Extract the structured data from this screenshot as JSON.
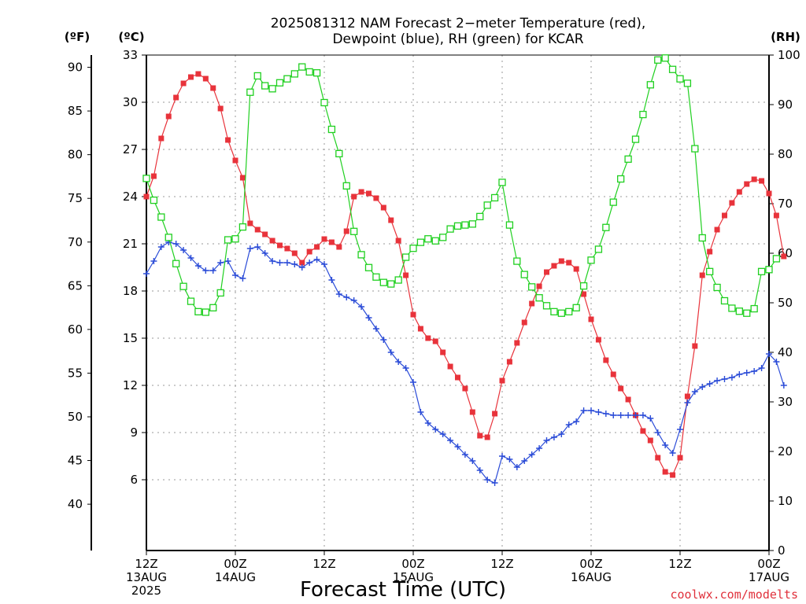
{
  "chart_data": {
    "type": "line",
    "title_line1": "2025081312 NAM Forecast 2−meter Temperature (red),",
    "title_line2": "Dewpoint (blue), RH (green) for KCAR",
    "unit_f": "(ºF)",
    "unit_c": "(ºC)",
    "unit_rh": "(RH)",
    "xlabel": "Forecast Time (UTC)",
    "credit": "coolwx.com/modelts",
    "x_start": "2025-08-13T12:00Z",
    "x_end": "2025-08-17T00:00Z",
    "x_step_hours": 1,
    "x_ticks": [
      {
        "lines": [
          "12Z",
          "13AUG",
          "2025"
        ]
      },
      {
        "lines": [
          "00Z",
          "14AUG"
        ]
      },
      {
        "lines": [
          "12Z"
        ]
      },
      {
        "lines": [
          "00Z",
          "15AUG"
        ]
      },
      {
        "lines": [
          "12Z"
        ]
      },
      {
        "lines": [
          "00Z",
          "16AUG"
        ]
      },
      {
        "lines": [
          "12Z"
        ]
      },
      {
        "lines": [
          "00Z",
          "17AUG"
        ]
      }
    ],
    "y_celsius": {
      "range": [
        1.5,
        33
      ],
      "ticks": [
        6,
        9,
        12,
        15,
        18,
        21,
        24,
        27,
        30,
        33
      ]
    },
    "y_fahrenheit": {
      "range": [
        34.7,
        91.4
      ],
      "ticks": [
        40,
        45,
        50,
        55,
        60,
        65,
        70,
        75,
        80,
        85,
        90
      ]
    },
    "y_rh": {
      "range": [
        0,
        100
      ],
      "ticks": [
        0,
        10,
        20,
        30,
        40,
        50,
        60,
        70,
        80,
        90,
        100
      ]
    },
    "grid": true,
    "series": [
      {
        "name": "Temperature (red)",
        "axis": "celsius",
        "color": "#e8333b",
        "marker": "filled-square",
        "values": [
          24.0,
          25.3,
          27.7,
          29.1,
          30.3,
          31.2,
          31.6,
          31.8,
          31.5,
          30.9,
          29.6,
          27.6,
          26.3,
          25.2,
          22.3,
          21.9,
          21.6,
          21.2,
          20.9,
          20.7,
          20.4,
          19.8,
          20.5,
          20.8,
          21.3,
          21.1,
          20.8,
          21.8,
          24.0,
          24.3,
          24.2,
          23.9,
          23.3,
          22.5,
          21.2,
          19.0,
          16.5,
          15.6,
          15.0,
          14.8,
          14.1,
          13.2,
          12.5,
          11.8,
          10.3,
          8.8,
          8.7,
          10.2,
          12.3,
          13.5,
          14.7,
          16.0,
          17.2,
          18.3,
          19.2,
          19.6,
          19.9,
          19.8,
          19.4,
          17.8,
          16.2,
          14.9,
          13.6,
          12.7,
          11.8,
          11.1,
          10.1,
          9.1,
          8.5,
          7.4,
          6.5,
          6.3,
          7.4,
          11.3,
          14.5,
          19.0,
          20.5,
          21.9,
          22.8,
          23.6,
          24.3,
          24.8,
          25.1,
          25.0,
          24.2,
          22.8,
          20.2
        ]
      },
      {
        "name": "Dewpoint (blue)",
        "axis": "celsius",
        "color": "#2a4bd7",
        "marker": "plus",
        "values": [
          19.1,
          19.9,
          20.8,
          21.1,
          21.0,
          20.6,
          20.1,
          19.6,
          19.3,
          19.3,
          19.8,
          19.9,
          19.0,
          18.8,
          20.7,
          20.8,
          20.4,
          19.9,
          19.8,
          19.8,
          19.7,
          19.5,
          19.8,
          20.0,
          19.7,
          18.7,
          17.8,
          17.6,
          17.4,
          17.0,
          16.3,
          15.6,
          14.9,
          14.1,
          13.5,
          13.1,
          12.2,
          10.3,
          9.6,
          9.2,
          8.9,
          8.5,
          8.1,
          7.6,
          7.2,
          6.6,
          6.0,
          5.8,
          7.5,
          7.3,
          6.8,
          7.2,
          7.6,
          8.0,
          8.5,
          8.7,
          8.9,
          9.5,
          9.7,
          10.4,
          10.4,
          10.3,
          10.2,
          10.1,
          10.1,
          10.1,
          10.1,
          10.1,
          9.9,
          9.0,
          8.2,
          7.7,
          9.2,
          10.9,
          11.6,
          11.9,
          12.1,
          12.3,
          12.4,
          12.5,
          12.7,
          12.8,
          12.9,
          13.1,
          14.0,
          13.5,
          12.0
        ]
      },
      {
        "name": "RH (green)",
        "axis": "rh",
        "color": "#20d020",
        "marker": "open-square",
        "values": [
          75.1,
          70.7,
          67.3,
          63.2,
          57.9,
          53.3,
          50.3,
          48.2,
          48.1,
          49.0,
          52.0,
          62.7,
          62.9,
          65.3,
          92.5,
          95.8,
          93.8,
          93.2,
          94.4,
          95.2,
          96.2,
          97.6,
          96.6,
          96.4,
          90.4,
          85.0,
          80.1,
          73.6,
          64.4,
          59.7,
          57.1,
          55.2,
          54.1,
          53.8,
          54.6,
          59.2,
          61.0,
          62.2,
          62.9,
          62.5,
          63.2,
          64.9,
          65.5,
          65.7,
          65.9,
          67.4,
          69.7,
          71.2,
          74.3,
          65.7,
          58.4,
          55.7,
          53.2,
          51.0,
          49.4,
          48.2,
          47.9,
          48.2,
          49.0,
          53.4,
          58.6,
          60.8,
          65.2,
          70.3,
          75.0,
          79.0,
          83.0,
          88.0,
          94.0,
          99.0,
          99.4,
          97.1,
          95.2,
          94.3,
          81.1,
          63.1,
          56.3,
          53.1,
          50.4,
          48.9,
          48.3,
          47.9,
          48.8,
          56.3,
          56.7,
          58.9
        ]
      }
    ]
  }
}
